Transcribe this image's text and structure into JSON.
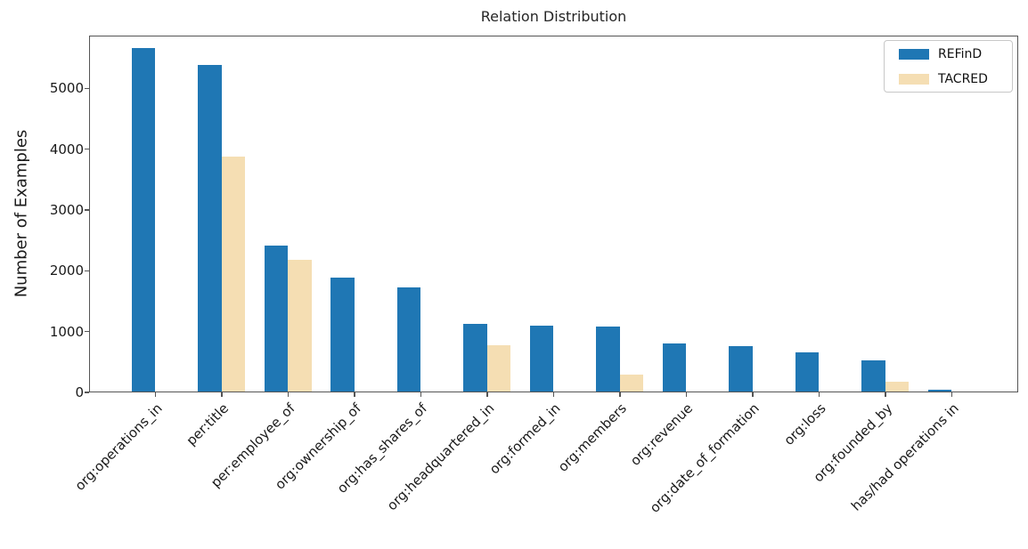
{
  "chart_data": {
    "type": "bar",
    "title": "Relation Distribution",
    "xlabel": "",
    "ylabel": "Number of Examples",
    "categories": [
      "org:operations_in",
      "per:title",
      "per:employee_of",
      "org:ownership_of",
      "org:has_shares_of",
      "org:headquartered_in",
      "org:formed_in",
      "org:members",
      "org:revenue",
      "org:date_of_formation",
      "org:loss",
      "org:founded_by",
      "has/had operations in"
    ],
    "series": [
      {
        "name": "REFinD",
        "color": "#1f77b4",
        "values": [
          5650,
          5370,
          2400,
          1880,
          1720,
          1110,
          1090,
          1070,
          785,
          750,
          640,
          510,
          30
        ]
      },
      {
        "name": "TACRED",
        "color": "#f5deb3",
        "values": [
          0,
          3860,
          2170,
          0,
          0,
          755,
          0,
          285,
          0,
          0,
          0,
          165,
          0
        ]
      }
    ],
    "yticks": [
      0,
      1000,
      2000,
      3000,
      4000,
      5000
    ],
    "ylim": [
      0,
      5870
    ],
    "x_tick_rotation": 45,
    "grid": false,
    "legend_position": "upper right",
    "spine_color": "#555555",
    "background_color": "#ffffff"
  }
}
